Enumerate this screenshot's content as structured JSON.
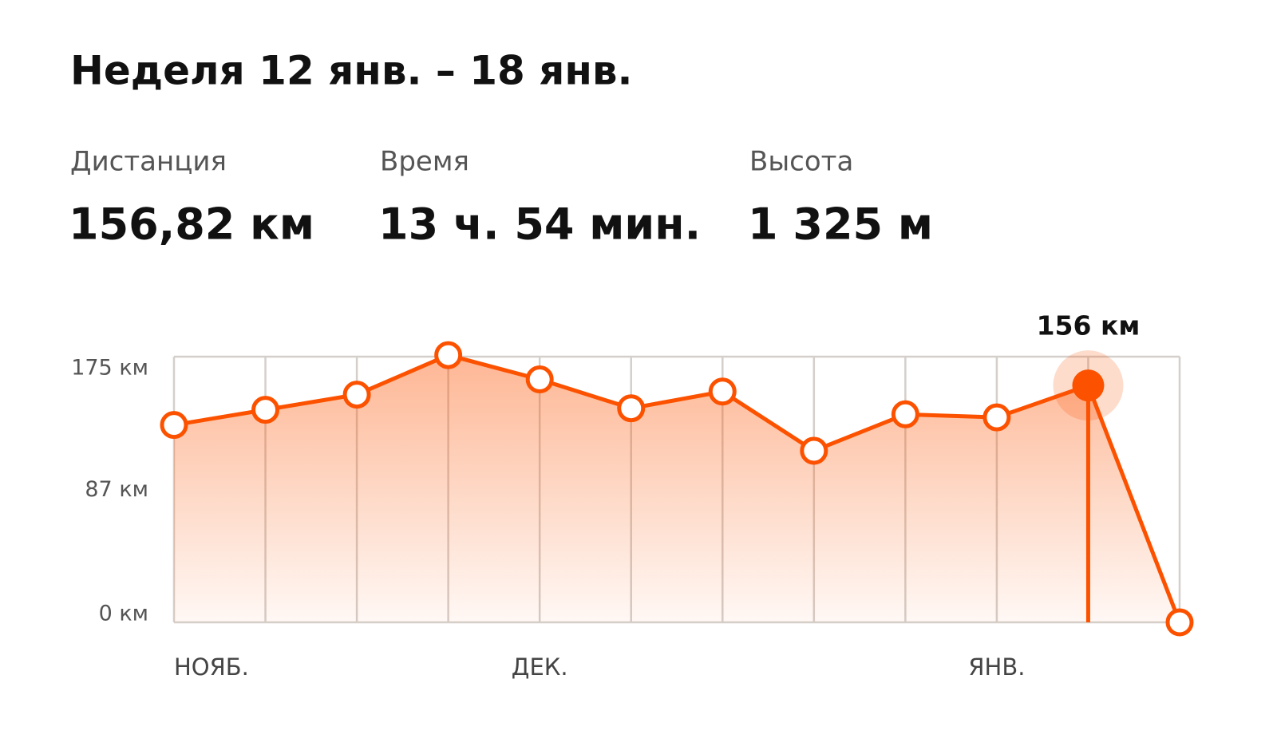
{
  "header": {
    "title": "Неделя 12 янв. – 18 янв."
  },
  "stats": [
    {
      "label": "Дистанция",
      "value": "156,82 км"
    },
    {
      "label": "Время",
      "value": "13 ч. 54 мин."
    },
    {
      "label": "Высота",
      "value": "1 325 м"
    }
  ],
  "chart_data": {
    "type": "line",
    "categories": [
      "НОЯБ.",
      null,
      null,
      null,
      "ДЕК.",
      null,
      null,
      null,
      null,
      "ЯНВ.",
      null,
      null
    ],
    "values": [
      130,
      140,
      150,
      176,
      160,
      141,
      152,
      113,
      137,
      135,
      156,
      0
    ],
    "value_labels": [
      null,
      null,
      null,
      null,
      null,
      null,
      null,
      null,
      null,
      null,
      "156 км",
      null
    ],
    "color": "#fc5200",
    "ylim": [
      0,
      175
    ],
    "yticks": [
      {
        "value": 0,
        "label": "0 км"
      },
      {
        "value": 87,
        "label": "87 км"
      },
      {
        "value": 175,
        "label": "175 км"
      }
    ],
    "grid": true
  }
}
